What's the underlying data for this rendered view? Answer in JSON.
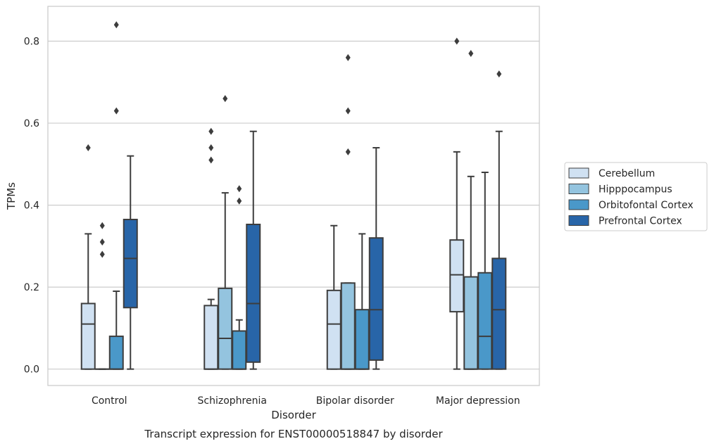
{
  "caption": "Transcript expression for ENST00000518847 by disorder",
  "chart_data": {
    "type": "box",
    "xlabel": "Disorder",
    "ylabel": "TPMs",
    "ylim": [
      -0.04,
      0.885
    ],
    "yticks": [
      0.0,
      0.2,
      0.4,
      0.6,
      0.8
    ],
    "ytick_labels": [
      "0.0",
      "0.2",
      "0.4",
      "0.6",
      "0.8"
    ],
    "grid": "horizontal",
    "legend_position": "right",
    "categories": [
      "Control",
      "Schizophrenia",
      "Bipolar disorder",
      "Major depression"
    ],
    "series": [
      {
        "name": "Cerebellum",
        "color": "#d0e1f2",
        "boxes": [
          {
            "whisker_low": 0.0,
            "q1": 0.0,
            "median": 0.11,
            "q3": 0.16,
            "whisker_high": 0.33,
            "outliers": [
              0.54
            ]
          },
          {
            "whisker_low": 0.0,
            "q1": 0.0,
            "median": 0.0,
            "q3": 0.155,
            "whisker_high": 0.17,
            "outliers": [
              0.51,
              0.54,
              0.58
            ]
          },
          {
            "whisker_low": 0.0,
            "q1": 0.0,
            "median": 0.11,
            "q3": 0.192,
            "whisker_high": 0.35,
            "outliers": []
          },
          {
            "whisker_low": 0.0,
            "q1": 0.14,
            "median": 0.23,
            "q3": 0.315,
            "whisker_high": 0.53,
            "outliers": [
              0.8
            ]
          }
        ]
      },
      {
        "name": "Hipppocampus",
        "color": "#94c4df",
        "boxes": [
          {
            "whisker_low": 0.0,
            "q1": 0.0,
            "median": 0.0,
            "q3": 0.0,
            "whisker_high": 0.0,
            "outliers": [
              0.28,
              0.31,
              0.35
            ]
          },
          {
            "whisker_low": 0.0,
            "q1": 0.0,
            "median": 0.075,
            "q3": 0.197,
            "whisker_high": 0.43,
            "outliers": [
              0.66
            ]
          },
          {
            "whisker_low": 0.0,
            "q1": 0.0,
            "median": 0.0,
            "q3": 0.21,
            "whisker_high": 0.21,
            "outliers": [
              0.53,
              0.63,
              0.76
            ]
          },
          {
            "whisker_low": 0.0,
            "q1": 0.0,
            "median": 0.0,
            "q3": 0.225,
            "whisker_high": 0.47,
            "outliers": [
              0.77
            ]
          }
        ]
      },
      {
        "name": "Orbitofontal Cortex",
        "color": "#4a98c9",
        "boxes": [
          {
            "whisker_low": 0.0,
            "q1": 0.0,
            "median": 0.0,
            "q3": 0.08,
            "whisker_high": 0.19,
            "outliers": [
              0.63,
              0.84
            ]
          },
          {
            "whisker_low": 0.0,
            "q1": 0.0,
            "median": 0.0,
            "q3": 0.093,
            "whisker_high": 0.12,
            "outliers": [
              0.41,
              0.44
            ]
          },
          {
            "whisker_low": 0.0,
            "q1": 0.0,
            "median": 0.0,
            "q3": 0.145,
            "whisker_high": 0.33,
            "outliers": []
          },
          {
            "whisker_low": 0.0,
            "q1": 0.0,
            "median": 0.08,
            "q3": 0.235,
            "whisker_high": 0.48,
            "outliers": []
          }
        ]
      },
      {
        "name": "Prefrontal Cortex",
        "color": "#2865a8",
        "boxes": [
          {
            "whisker_low": 0.0,
            "q1": 0.15,
            "median": 0.27,
            "q3": 0.365,
            "whisker_high": 0.52,
            "outliers": []
          },
          {
            "whisker_low": 0.0,
            "q1": 0.017,
            "median": 0.16,
            "q3": 0.353,
            "whisker_high": 0.58,
            "outliers": []
          },
          {
            "whisker_low": 0.0,
            "q1": 0.022,
            "median": 0.145,
            "q3": 0.32,
            "whisker_high": 0.54,
            "outliers": []
          },
          {
            "whisker_low": 0.0,
            "q1": 0.0,
            "median": 0.145,
            "q3": 0.27,
            "whisker_high": 0.58,
            "outliers": [
              0.72
            ]
          }
        ]
      }
    ]
  }
}
